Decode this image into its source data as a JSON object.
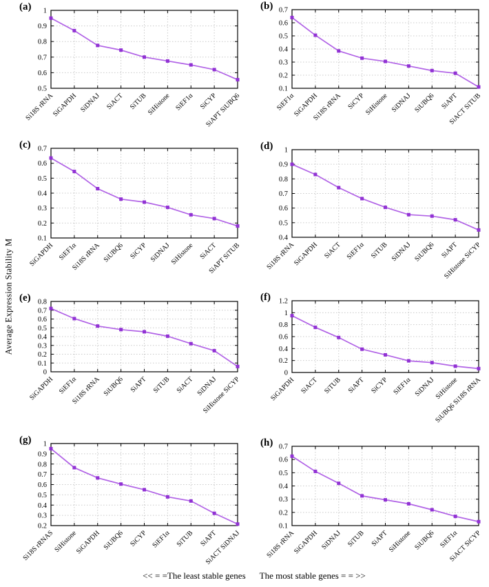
{
  "figure": {
    "ylabel": "Average Expression Stability M",
    "footer": {
      "left": "<< = =The least stable genes",
      "right": "The most stable genes = = >>"
    }
  },
  "style": {
    "line_color": "#b163e6",
    "marker_color": "#9132d4",
    "grid_color": "#c9c9c9",
    "axis_color": "#000000"
  },
  "chart_data": [
    {
      "type": "line",
      "panel_label": "(a)",
      "categories": [
        "Si18S rRNA",
        "SiGAPDH",
        "SiDNAJ",
        "SiACT",
        "SiTUB",
        "SiHistone",
        "SiEF1α",
        "SiCYP",
        "SiAPT SiUBQ6"
      ],
      "values": [
        0.95,
        0.87,
        0.775,
        0.745,
        0.7,
        0.675,
        0.65,
        0.62,
        0.555
      ],
      "ylim": [
        0.5,
        1
      ],
      "ytick_step": 0.1,
      "grid": true,
      "legend": "none"
    },
    {
      "type": "line",
      "panel_label": "(b)",
      "categories": [
        "SiEF1α",
        "SiGAPDH",
        "Si18S rRNA",
        "SiCYP",
        "SiHistone",
        "SiDNAJ",
        "SiUBQ6",
        "SiAPT",
        "SiACT SiTUB"
      ],
      "values": [
        0.64,
        0.505,
        0.385,
        0.33,
        0.305,
        0.27,
        0.235,
        0.215,
        0.11
      ],
      "ylim": [
        0.1,
        0.7
      ],
      "ytick_step": 0.1,
      "grid": true,
      "legend": "none"
    },
    {
      "type": "line",
      "panel_label": "(c)",
      "categories": [
        "SiGAPDH",
        "SiEF1α",
        "Si18S rRNA",
        "SiUBQ6",
        "SiCYP",
        "SiDNAJ",
        "SiHistone",
        "SiACT",
        "SiAPT SiTUB"
      ],
      "values": [
        0.635,
        0.545,
        0.43,
        0.36,
        0.34,
        0.305,
        0.255,
        0.23,
        0.18
      ],
      "ylim": [
        0.1,
        0.7
      ],
      "ytick_step": 0.1,
      "grid": true,
      "legend": "none"
    },
    {
      "type": "line",
      "panel_label": "(d)",
      "categories": [
        "Si18S rRNA",
        "SiGAPDH",
        "SiACT",
        "SiEF1α",
        "SiTUB",
        "SiDNAJ",
        "SiUBQ6",
        "SiAPT",
        "SiHistone SiCYP"
      ],
      "values": [
        0.9,
        0.83,
        0.74,
        0.665,
        0.605,
        0.555,
        0.545,
        0.52,
        0.45
      ],
      "ylim": [
        0.4,
        1
      ],
      "ytick_step": 0.1,
      "grid": true,
      "legend": "none"
    },
    {
      "type": "line",
      "panel_label": "(e)",
      "categories": [
        "SiGAPDH",
        "SiEF1α",
        "Si18S rRNA",
        "SiUBQ6",
        "SiAPT",
        "SiTUB",
        "SiACT",
        "SiDNAJ",
        "SiHistone SiCYP"
      ],
      "values": [
        0.72,
        0.605,
        0.52,
        0.48,
        0.455,
        0.405,
        0.32,
        0.24,
        0.06
      ],
      "ylim": [
        0,
        0.8
      ],
      "ytick_step": 0.1,
      "grid": true,
      "legend": "none"
    },
    {
      "type": "line",
      "panel_label": "(f)",
      "categories": [
        "SiGAPDH",
        "SiACT",
        "SiTUB",
        "SiAPT",
        "SiCYP",
        "SiEF1α",
        "SiDNAJ",
        "SiHistone",
        "SiUBQ6 Si18S rRNA"
      ],
      "values": [
        0.95,
        0.755,
        0.585,
        0.39,
        0.295,
        0.195,
        0.165,
        0.105,
        0.065
      ],
      "ylim": [
        0,
        1.2
      ],
      "ytick_step": 0.2,
      "grid": true,
      "legend": "none"
    },
    {
      "type": "line",
      "panel_label": "(g)",
      "categories": [
        "Si18S rRNAS",
        "SiHistone",
        "SiGAPDH",
        "SiUBQ6",
        "SiCYP",
        "SiEF1α",
        "SiTUB",
        "SiAPT",
        "SiACT SiDNAJ"
      ],
      "values": [
        0.95,
        0.765,
        0.665,
        0.605,
        0.55,
        0.48,
        0.44,
        0.32,
        0.215
      ],
      "ylim": [
        0.2,
        1
      ],
      "ytick_step": 0.1,
      "grid": true,
      "legend": "none"
    },
    {
      "type": "line",
      "panel_label": "(h)",
      "categories": [
        "Si18S rRNA",
        "SiGAPDH",
        "SiDNAJ",
        "SiTUB",
        "SiAPT",
        "SiHistone",
        "SiUBQ6",
        "SiEF1α",
        "SiACT SiCYP"
      ],
      "values": [
        0.625,
        0.51,
        0.42,
        0.325,
        0.295,
        0.265,
        0.22,
        0.17,
        0.13
      ],
      "ylim": [
        0.1,
        0.7
      ],
      "ytick_step": 0.1,
      "grid": true,
      "legend": "none"
    }
  ]
}
